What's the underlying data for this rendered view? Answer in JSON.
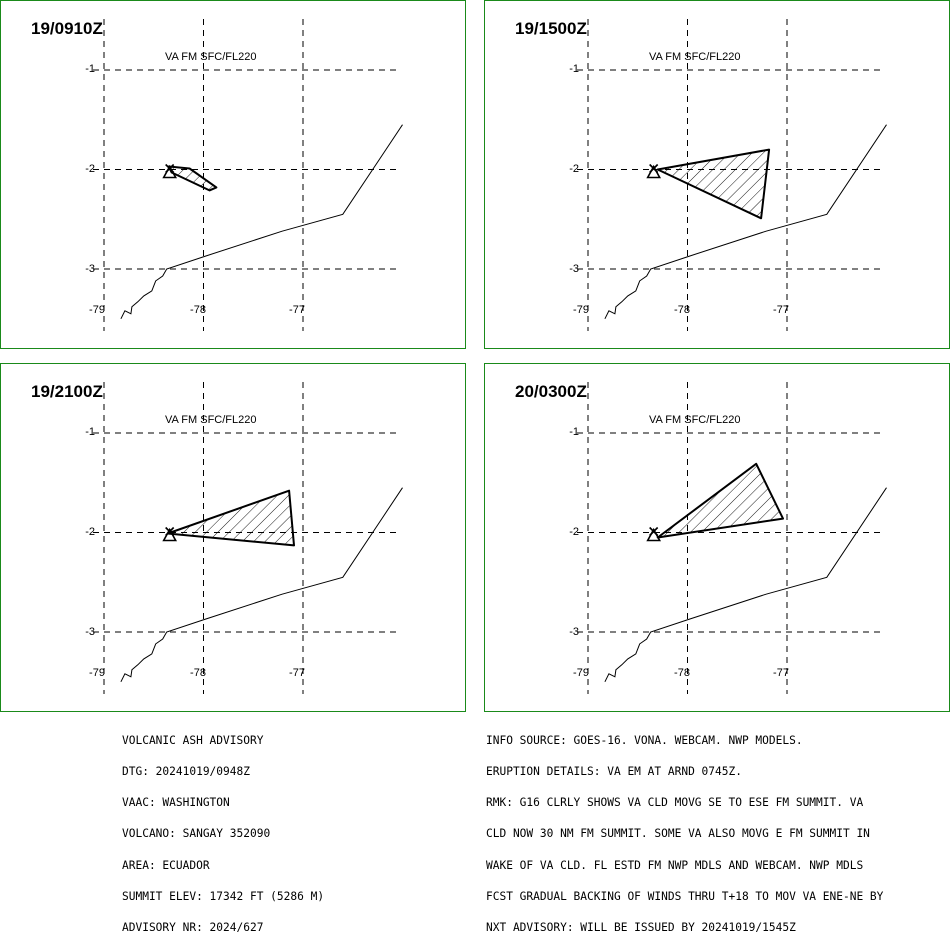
{
  "panels": [
    {
      "time": "19/0910Z",
      "level": "VA FM SFC/FL220",
      "ash_polygon": [
        [
          -78.35,
          -1.97
        ],
        [
          -78.14,
          -1.99
        ],
        [
          -77.87,
          -2.18
        ],
        [
          -77.94,
          -2.21
        ],
        [
          -78.32,
          -2.03
        ]
      ]
    },
    {
      "time": "19/1500Z",
      "level": "VA FM SFC/FL220",
      "ash_polygon": [
        [
          -78.3,
          -2.0
        ],
        [
          -77.18,
          -1.8
        ],
        [
          -77.26,
          -2.49
        ]
      ]
    },
    {
      "time": "19/2100Z",
      "level": "VA FM SFC/FL220",
      "ash_polygon": [
        [
          -78.36,
          -2.01
        ],
        [
          -77.14,
          -1.58
        ],
        [
          -77.09,
          -2.13
        ]
      ]
    },
    {
      "time": "20/0300Z",
      "level": "VA FM SFC/FL220",
      "ash_polygon": [
        [
          -78.3,
          -2.05
        ],
        [
          -77.31,
          -1.31
        ],
        [
          -77.04,
          -1.86
        ]
      ]
    }
  ],
  "volcano": {
    "lon": -78.34,
    "lat": -2.0,
    "marker": "triangle-x-icon"
  },
  "axes": {
    "lon_ticks": [
      "-79",
      "-78",
      "-77"
    ],
    "lat_ticks": [
      "-1",
      "-2",
      "-3"
    ],
    "lon_values": [
      -79,
      -78,
      -77
    ],
    "lat_values": [
      -1,
      -2,
      -3
    ],
    "lon_range": [
      -79.0,
      -76.0
    ],
    "lat_range": [
      -0.7,
      -3.5
    ],
    "grid": "dashed"
  },
  "coastline": [
    [
      -78.83,
      -3.5
    ],
    [
      -78.79,
      -3.42
    ],
    [
      -78.73,
      -3.45
    ],
    [
      -78.72,
      -3.38
    ],
    [
      -78.66,
      -3.33
    ],
    [
      -78.6,
      -3.27
    ],
    [
      -78.52,
      -3.22
    ],
    [
      -78.48,
      -3.12
    ],
    [
      -78.41,
      -3.07
    ],
    [
      -78.37,
      -3.0
    ],
    [
      -77.98,
      -2.87
    ],
    [
      -77.21,
      -2.62
    ],
    [
      -76.6,
      -2.45
    ],
    [
      -76.0,
      -1.55
    ]
  ],
  "footer_left": [
    "VOLCANIC ASH ADVISORY",
    "DTG: 20241019/0948Z",
    "VAAC: WASHINGTON",
    "VOLCANO: SANGAY 352090",
    "AREA: ECUADOR",
    "SUMMIT ELEV: 17342 FT (5286 M)",
    "ADVISORY NR: 2024/627"
  ],
  "footer_right": [
    "INFO SOURCE: GOES-16. VONA. WEBCAM. NWP MODELS.",
    "ERUPTION DETAILS: VA EM AT ARND 0745Z.",
    "RMK: G16 CLRLY SHOWS VA CLD MOVG SE TO ESE FM SUMMIT. VA",
    "CLD NOW 30 NM FM SUMMIT. SOME VA ALSO MOVG E FM SUMMIT IN",
    "WAKE OF VA CLD. FL ESTD FM NWP MDLS AND WEBCAM. NWP MDLS",
    "FCST GRADUAL BACKING OF WINDS THRU T+18 TO MOV VA ENE-NE BY",
    "NXT ADVISORY: WILL BE ISSUED BY 20241019/1545Z"
  ],
  "colors": {
    "panel_border": "#1a8a1a",
    "ink": "#000000",
    "background": "#ffffff"
  }
}
